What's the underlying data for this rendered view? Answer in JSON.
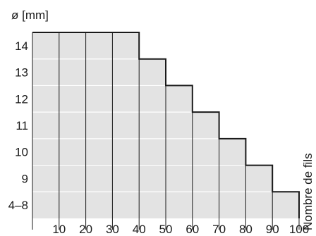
{
  "chart_data": {
    "type": "area",
    "ylabel": "ø [mm]",
    "right_label": "Nombre de fils",
    "x_ticks": [
      "10",
      "20",
      "30",
      "40",
      "50",
      "60",
      "70",
      "80",
      "90",
      "100"
    ],
    "y_ticks": [
      "4–8",
      "9",
      "10",
      "11",
      "12",
      "13",
      "14"
    ],
    "steps": [
      {
        "x_from": 0,
        "x_to": 40,
        "y": "14"
      },
      {
        "x_from": 40,
        "x_to": 50,
        "y": "13"
      },
      {
        "x_from": 50,
        "x_to": 60,
        "y": "12"
      },
      {
        "x_from": 60,
        "x_to": 70,
        "y": "11"
      },
      {
        "x_from": 70,
        "x_to": 80,
        "y": "10"
      },
      {
        "x_from": 80,
        "x_to": 90,
        "y": "9"
      },
      {
        "x_from": 90,
        "x_to": 100,
        "y": "4–8"
      }
    ],
    "xlim": [
      0,
      100
    ],
    "fill_color": "#e3e3e3",
    "line_color": "#1a1a1a",
    "grid": true
  }
}
